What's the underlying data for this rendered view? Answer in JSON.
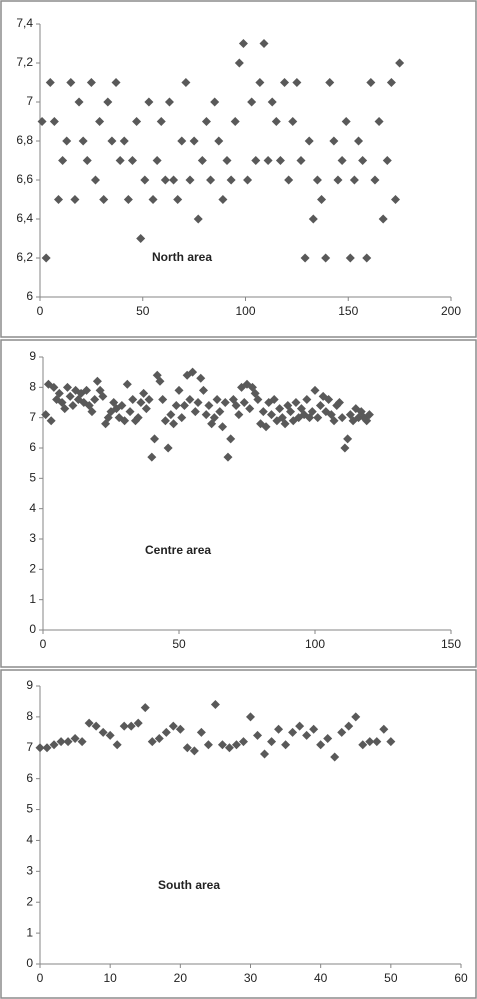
{
  "chart_data": [
    {
      "type": "scatter",
      "annotation": "North area",
      "color": "#595959",
      "x": [
        1,
        3,
        5,
        7,
        9,
        11,
        13,
        15,
        17,
        19,
        21,
        23,
        25,
        27,
        29,
        31,
        33,
        35,
        37,
        39,
        41,
        43,
        45,
        47,
        49,
        51,
        53,
        55,
        57,
        59,
        61,
        63,
        65,
        67,
        69,
        71,
        73,
        75,
        77,
        79,
        81,
        83,
        85,
        87,
        89,
        91,
        93,
        95,
        97,
        99,
        101,
        103,
        105,
        107,
        109,
        111,
        113,
        115,
        117,
        119,
        121,
        123,
        125,
        127,
        129,
        131,
        133,
        135,
        137,
        139,
        141,
        143,
        145,
        147,
        149,
        151,
        153,
        155,
        157,
        159,
        161,
        163,
        165,
        167,
        169,
        171,
        173,
        175
      ],
      "values": [
        6.9,
        6.2,
        7.1,
        6.9,
        6.5,
        6.7,
        6.8,
        7.1,
        6.5,
        7.0,
        6.8,
        6.7,
        7.1,
        6.6,
        6.9,
        6.5,
        7.0,
        6.8,
        7.1,
        6.7,
        6.8,
        6.5,
        6.7,
        6.9,
        6.3,
        6.6,
        7.0,
        6.5,
        6.7,
        6.9,
        6.6,
        7.0,
        6.6,
        6.5,
        6.8,
        7.1,
        6.6,
        6.8,
        6.4,
        6.7,
        6.9,
        6.6,
        7.0,
        6.8,
        6.5,
        6.7,
        6.6,
        6.9,
        7.2,
        7.3,
        6.6,
        7.0,
        6.7,
        7.1,
        7.3,
        6.7,
        7.0,
        6.9,
        6.7,
        7.1,
        6.6,
        6.9,
        7.1,
        6.7,
        6.2,
        6.8,
        6.4,
        6.6,
        6.5,
        6.2,
        7.1,
        6.8,
        6.6,
        6.7,
        6.9,
        6.2,
        6.6,
        6.8,
        6.7,
        6.2,
        7.1,
        6.6,
        6.9,
        6.4,
        6.7,
        7.1,
        6.5,
        7.2
      ],
      "xlim": [
        0,
        200
      ],
      "xticks": [
        0,
        50,
        100,
        150,
        200
      ],
      "ylim": [
        6,
        7.4
      ],
      "yticks": [
        6,
        {
          "value": 6.2,
          "label": "6,2"
        },
        {
          "value": 6.4,
          "label": "6,4"
        },
        {
          "value": 6.6,
          "label": "6,6"
        },
        {
          "value": 6.8,
          "label": "6,8"
        },
        7,
        {
          "value": 7.2,
          "label": "7,2"
        },
        {
          "value": 7.4,
          "label": "7,4"
        }
      ]
    },
    {
      "type": "scatter",
      "annotation": "Centre area",
      "color": "#595959",
      "x": [
        1,
        2,
        3,
        4,
        5,
        6,
        7,
        8,
        9,
        10,
        11,
        12,
        13,
        14,
        15,
        16,
        17,
        18,
        19,
        20,
        21,
        22,
        23,
        24,
        25,
        26,
        27,
        28,
        29,
        30,
        31,
        32,
        33,
        34,
        35,
        36,
        37,
        38,
        39,
        40,
        41,
        42,
        43,
        44,
        45,
        46,
        47,
        48,
        49,
        50,
        51,
        52,
        53,
        54,
        55,
        56,
        57,
        58,
        59,
        60,
        61,
        62,
        63,
        64,
        65,
        66,
        67,
        68,
        69,
        70,
        71,
        72,
        73,
        74,
        75,
        76,
        77,
        78,
        79,
        80,
        81,
        82,
        83,
        84,
        85,
        86,
        87,
        88,
        89,
        90,
        91,
        92,
        93,
        94,
        95,
        96,
        97,
        98,
        99,
        100,
        101,
        102,
        103,
        104,
        105,
        106,
        107,
        108,
        109,
        110,
        111,
        112,
        113,
        114,
        115,
        116,
        117,
        118,
        119,
        120
      ],
      "values": [
        7.1,
        8.1,
        6.9,
        8.0,
        7.6,
        7.8,
        7.5,
        7.3,
        8.0,
        7.7,
        7.4,
        7.9,
        7.6,
        7.8,
        7.5,
        7.9,
        7.4,
        7.2,
        7.6,
        8.2,
        7.9,
        7.7,
        6.8,
        7.0,
        7.2,
        7.5,
        7.3,
        7.0,
        7.4,
        6.9,
        8.1,
        7.2,
        7.6,
        6.9,
        7.0,
        7.5,
        7.8,
        7.3,
        7.6,
        5.7,
        6.3,
        8.4,
        8.2,
        7.6,
        6.9,
        6.0,
        7.1,
        6.8,
        7.4,
        7.9,
        7.0,
        7.4,
        8.4,
        7.6,
        8.5,
        7.2,
        7.5,
        8.3,
        7.9,
        7.1,
        7.4,
        6.8,
        7.0,
        7.6,
        7.2,
        6.7,
        7.5,
        5.7,
        6.3,
        7.6,
        7.4,
        7.1,
        8.0,
        7.5,
        8.1,
        7.3,
        8.0,
        7.8,
        7.6,
        6.8,
        7.2,
        6.7,
        7.5,
        7.1,
        7.6,
        6.9,
        7.3,
        7.0,
        6.8,
        7.4,
        7.2,
        6.9,
        7.5,
        7.0,
        7.3,
        7.1,
        7.6,
        7.0,
        7.2,
        7.9,
        7.0,
        7.4,
        7.7,
        7.2,
        7.6,
        7.1,
        6.9,
        7.4,
        7.5,
        7.0,
        6.0,
        6.3,
        7.1,
        6.9,
        7.3,
        7.0,
        7.2,
        7.0,
        6.9,
        7.1
      ],
      "xlim": [
        0,
        150
      ],
      "xticks": [
        0,
        50,
        100,
        150
      ],
      "ylim": [
        0,
        9
      ],
      "yticks": [
        0,
        1,
        2,
        3,
        4,
        5,
        6,
        7,
        8,
        9
      ]
    },
    {
      "type": "scatter",
      "annotation": "South area",
      "color": "#595959",
      "x": [
        0,
        1,
        2,
        3,
        4,
        5,
        6,
        7,
        8,
        9,
        10,
        11,
        12,
        13,
        14,
        15,
        16,
        17,
        18,
        19,
        20,
        21,
        22,
        23,
        24,
        25,
        26,
        27,
        28,
        29,
        30,
        31,
        32,
        33,
        34,
        35,
        36,
        37,
        38,
        39,
        40,
        41,
        42,
        43,
        44,
        45,
        46,
        47,
        48,
        49,
        50
      ],
      "values": [
        7.0,
        7.0,
        7.1,
        7.2,
        7.2,
        7.3,
        7.2,
        7.8,
        7.7,
        7.5,
        7.4,
        7.1,
        7.7,
        7.7,
        7.8,
        8.3,
        7.2,
        7.3,
        7.5,
        7.7,
        7.6,
        7.0,
        6.9,
        7.5,
        7.1,
        8.4,
        7.1,
        7.0,
        7.1,
        7.2,
        8.0,
        7.4,
        6.8,
        7.2,
        7.6,
        7.1,
        7.5,
        7.7,
        7.4,
        7.6,
        7.1,
        7.3,
        6.7,
        7.5,
        7.7,
        8.0,
        7.1,
        7.2,
        7.2,
        7.6,
        7.2
      ],
      "xlim": [
        0,
        60
      ],
      "xticks": [
        0,
        10,
        20,
        30,
        40,
        50,
        60
      ],
      "ylim": [
        0,
        9
      ],
      "yticks": [
        0,
        1,
        2,
        3,
        4,
        5,
        6,
        7,
        8,
        9
      ]
    }
  ]
}
